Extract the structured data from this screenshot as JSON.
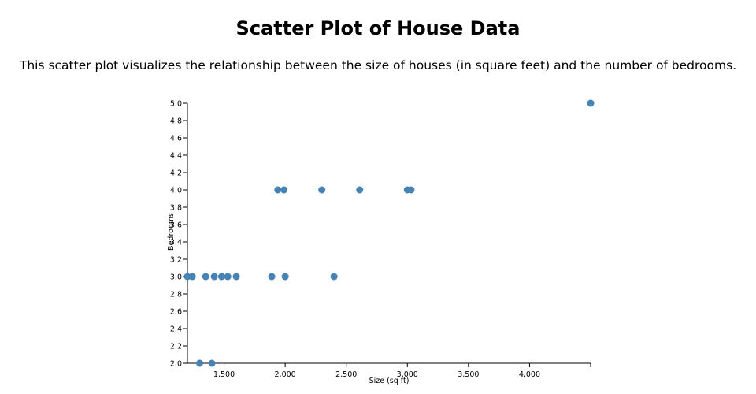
{
  "page": {
    "title": "Scatter Plot of House Data",
    "description": "This scatter plot visualizes the relationship between the size of houses (in square feet) and the number of bedrooms."
  },
  "chart_data": {
    "type": "scatter",
    "xlabel": "Size (sq ft)",
    "ylabel": "Bedrooms",
    "xlim": [
      1200,
      4500
    ],
    "ylim": [
      2.0,
      5.0
    ],
    "x_ticks": [
      1500,
      2000,
      2500,
      3000,
      3500,
      4000
    ],
    "x_tick_labels": [
      "1,500",
      "2,000",
      "2,500",
      "3,000",
      "3,500",
      "4,000"
    ],
    "y_ticks": [
      2.0,
      2.2,
      2.4,
      2.6,
      2.8,
      3.0,
      3.2,
      3.4,
      3.6,
      3.8,
      4.0,
      4.2,
      4.4,
      4.6,
      4.8,
      5.0
    ],
    "y_tick_labels": [
      "2.0",
      "2.2",
      "2.4",
      "2.6",
      "2.8",
      "3.0",
      "3.2",
      "3.4",
      "3.6",
      "3.8",
      "4.0",
      "4.2",
      "4.4",
      "4.6",
      "4.8",
      "5.0"
    ],
    "color": "#4682b4",
    "grid": false,
    "points": [
      {
        "x": 1200,
        "y": 3
      },
      {
        "x": 1240,
        "y": 3
      },
      {
        "x": 1300,
        "y": 2
      },
      {
        "x": 1350,
        "y": 3
      },
      {
        "x": 1400,
        "y": 2
      },
      {
        "x": 1420,
        "y": 3
      },
      {
        "x": 1480,
        "y": 3
      },
      {
        "x": 1530,
        "y": 3
      },
      {
        "x": 1600,
        "y": 3
      },
      {
        "x": 1890,
        "y": 3
      },
      {
        "x": 1940,
        "y": 4
      },
      {
        "x": 1990,
        "y": 4
      },
      {
        "x": 2000,
        "y": 3
      },
      {
        "x": 2300,
        "y": 4
      },
      {
        "x": 2400,
        "y": 3
      },
      {
        "x": 2610,
        "y": 4
      },
      {
        "x": 3000,
        "y": 4
      },
      {
        "x": 3030,
        "y": 4
      },
      {
        "x": 4500,
        "y": 5
      }
    ]
  }
}
